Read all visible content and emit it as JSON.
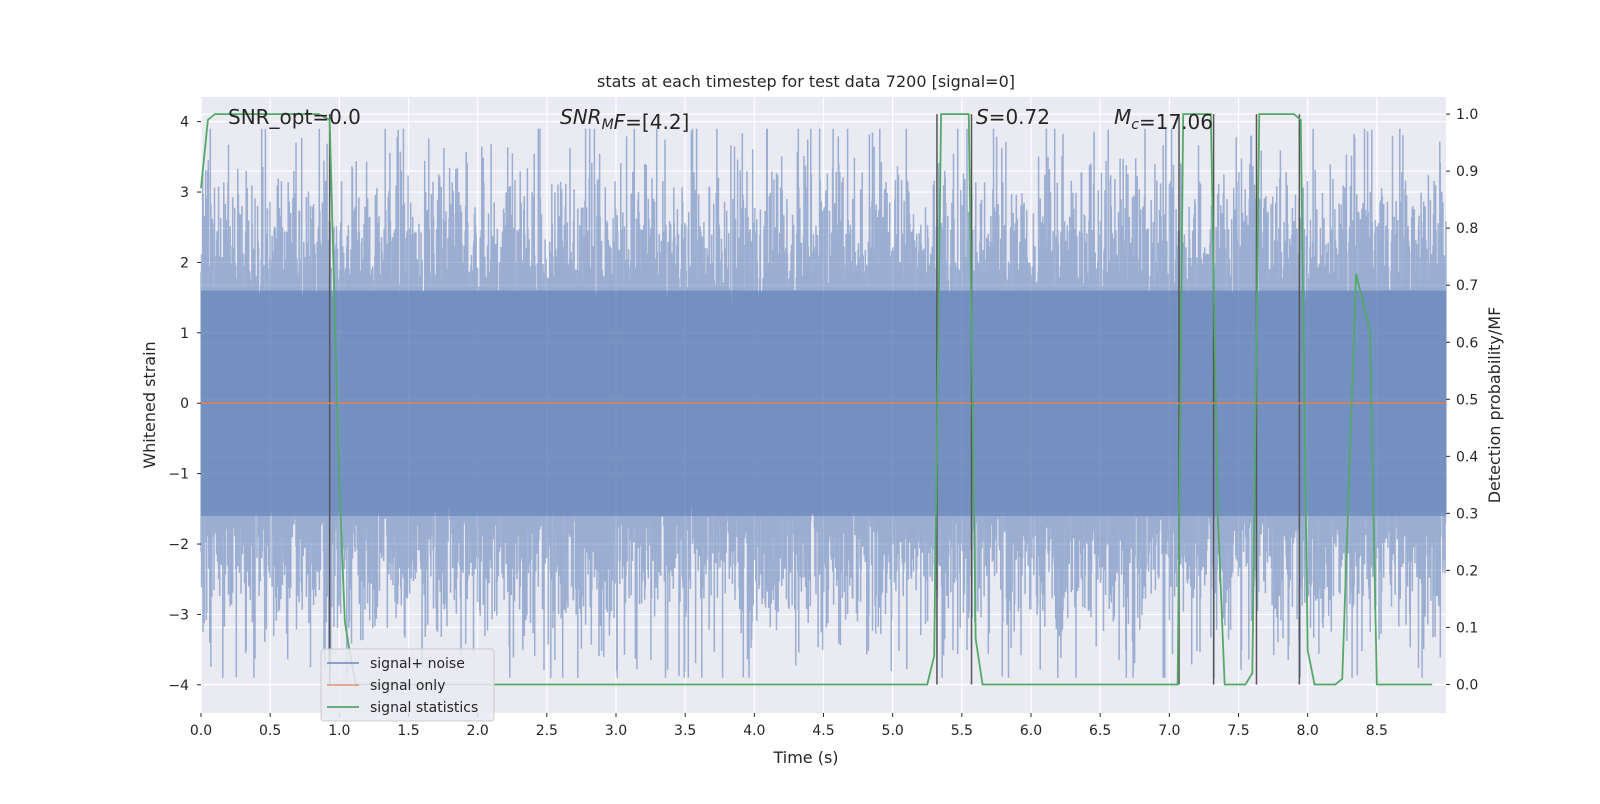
{
  "chart_data": {
    "type": "line",
    "title": "stats at each timestep for test data 7200 [signal=0]",
    "xlabel": "Time (s)",
    "ylabel_left": "Whitened strain",
    "ylabel_right": "Detection probability/MF",
    "xlim": [
      0.0,
      9.0
    ],
    "ylim_left": [
      -4.4,
      4.35
    ],
    "ylim_right": [
      -0.05,
      1.03
    ],
    "grid": true,
    "legend_position": "lower-left",
    "x_ticks": [
      "0.0",
      "0.5",
      "1.0",
      "1.5",
      "2.0",
      "2.5",
      "3.0",
      "3.5",
      "4.0",
      "4.5",
      "5.0",
      "5.5",
      "6.0",
      "6.5",
      "7.0",
      "7.5",
      "8.0",
      "8.5"
    ],
    "x_tick_values": [
      0.0,
      0.5,
      1.0,
      1.5,
      2.0,
      2.5,
      3.0,
      3.5,
      4.0,
      4.5,
      5.0,
      5.5,
      6.0,
      6.5,
      7.0,
      7.5,
      8.0,
      8.5
    ],
    "y_left_ticks": [
      "−4",
      "−3",
      "−2",
      "−1",
      "0",
      "1",
      "2",
      "3",
      "4"
    ],
    "y_left_tick_values": [
      -4,
      -3,
      -2,
      -1,
      0,
      1,
      2,
      3,
      4
    ],
    "y_right_ticks": [
      "0.0",
      "0.1",
      "0.2",
      "0.3",
      "0.4",
      "0.5",
      "0.6",
      "0.7",
      "0.8",
      "0.9",
      "1.0"
    ],
    "y_right_tick_values": [
      0.0,
      0.1,
      0.2,
      0.3,
      0.4,
      0.5,
      0.6,
      0.7,
      0.8,
      0.9,
      1.0
    ],
    "annotations": [
      {
        "text": "SNR_opt=0.0",
        "x": 0.2,
        "y": 1.0,
        "axis": "right"
      },
      {
        "text": "SNR_M F=[4.2]",
        "x": 2.6,
        "y": 1.0,
        "axis": "right"
      },
      {
        "text": "S=0.72",
        "x": 5.6,
        "y": 1.0,
        "axis": "right"
      },
      {
        "text": "M_c=17.06",
        "x": 6.6,
        "y": 1.0,
        "axis": "right"
      }
    ],
    "annotations_rich": [
      {
        "parts": [
          {
            "t": "SNR_opt=0.0",
            "i": false
          }
        ]
      },
      {
        "parts": [
          {
            "t": "SNR",
            "i": true
          },
          {
            "t": "M",
            "i": true,
            "sub": true
          },
          {
            "t": "F",
            "i": true
          },
          {
            "t": "=[4.2]",
            "i": false
          }
        ]
      },
      {
        "parts": [
          {
            "t": "S",
            "i": true
          },
          {
            "t": "=0.72",
            "i": false
          }
        ]
      },
      {
        "parts": [
          {
            "t": "M",
            "i": true
          },
          {
            "t": "c",
            "i": true,
            "sub": true
          },
          {
            "t": "=17.06",
            "i": false
          }
        ]
      }
    ],
    "series": [
      {
        "name": "signal+ noise",
        "color": "#4c72b0",
        "kind": "noise_band",
        "envelope_core": [
          -1.6,
          1.6
        ],
        "spike_range": [
          -3.9,
          3.9
        ]
      },
      {
        "name": "signal only",
        "color": "#dd8452",
        "x": [
          0.0,
          9.0
        ],
        "y": [
          0.0,
          0.0
        ]
      },
      {
        "name": "signal statistics",
        "color": "#55a868",
        "axis": "right",
        "x": [
          0.0,
          0.05,
          0.1,
          0.5,
          0.85,
          0.93,
          0.97,
          1.0,
          1.04,
          1.08,
          1.12,
          1.5,
          3.0,
          5.0,
          5.25,
          5.3,
          5.35,
          5.55,
          5.6,
          5.65,
          5.7,
          6.5,
          7.0,
          7.06,
          7.1,
          7.3,
          7.35,
          7.4,
          7.45,
          7.55,
          7.6,
          7.65,
          7.7,
          7.9,
          7.95,
          8.0,
          8.05,
          8.2,
          8.25,
          8.35,
          8.45,
          8.5,
          8.55,
          8.6,
          8.9
        ],
        "y": [
          0.87,
          0.99,
          1.0,
          1.0,
          1.0,
          0.99,
          0.62,
          0.35,
          0.11,
          0.05,
          0.0,
          0.0,
          0.0,
          0.0,
          0.0,
          0.05,
          1.0,
          1.0,
          0.08,
          0.0,
          0.0,
          0.0,
          0.0,
          0.0,
          1.0,
          1.0,
          0.3,
          0.0,
          0.0,
          0.0,
          0.02,
          1.0,
          1.0,
          1.0,
          0.99,
          0.06,
          0.0,
          0.0,
          0.01,
          0.72,
          0.62,
          0.0,
          0.0,
          0.0,
          0.0
        ]
      }
    ],
    "vertical_lines": [
      0.93,
      5.32,
      5.57,
      7.07,
      7.32,
      7.63,
      7.94
    ],
    "vertical_line_color": "#555555"
  }
}
